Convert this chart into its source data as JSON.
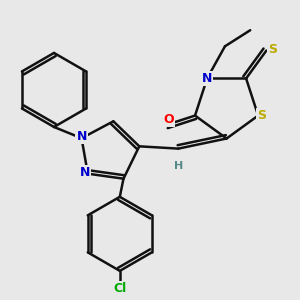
{
  "background_color": "#e8e8e8",
  "atom_color_N": "#0000cc",
  "atom_color_O": "#ff0000",
  "atom_color_S": "#bbaa00",
  "atom_color_Cl": "#00aa00",
  "atom_color_H": "#558888",
  "bond_color": "#111111",
  "bond_lw": 1.8,
  "dbo": 0.055,
  "figsize": [
    3.0,
    3.0
  ],
  "dpi": 100,
  "xlim": [
    -2.2,
    2.2
  ],
  "ylim": [
    -2.5,
    2.2
  ]
}
